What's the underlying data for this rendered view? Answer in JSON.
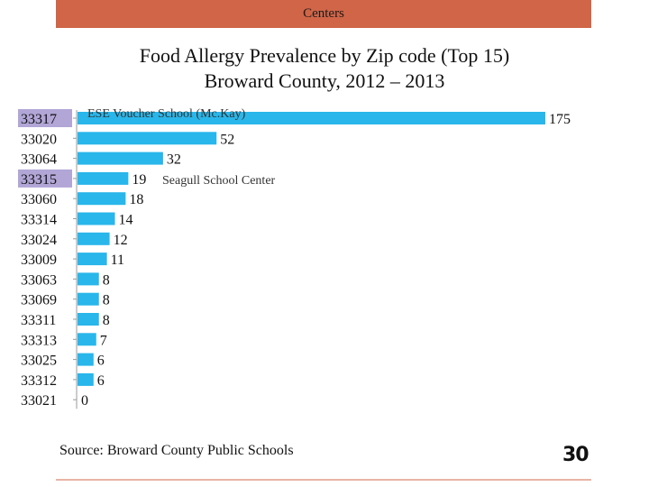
{
  "header": {
    "label": "Centers"
  },
  "chart_data": {
    "type": "bar",
    "orientation": "horizontal",
    "title": "Food Allergy Prevalence by Zip code (Top 15)",
    "subtitle": "Broward County, 2012 – 2013",
    "categories": [
      "33317",
      "33020",
      "33064",
      "33315",
      "33060",
      "33314",
      "33024",
      "33009",
      "33063",
      "33069",
      "33311",
      "33313",
      "33025",
      "33312",
      "33021"
    ],
    "values": [
      175,
      52,
      32,
      19,
      18,
      14,
      12,
      11,
      8,
      8,
      8,
      7,
      6,
      6,
      0
    ],
    "highlighted": [
      "33317",
      "33315"
    ],
    "annotations": [
      {
        "category": "33317",
        "text": "ESE Voucher School (Mc.Kay)"
      },
      {
        "category": "33315",
        "text": "Seagull School Center"
      }
    ],
    "bar_color": "#29b6ea",
    "highlight_color": "#b1a6d6",
    "xlim": [
      0,
      175
    ],
    "grid": false,
    "legend": "none"
  },
  "source": "Source: Broward County Public Schools",
  "page_number": "30"
}
